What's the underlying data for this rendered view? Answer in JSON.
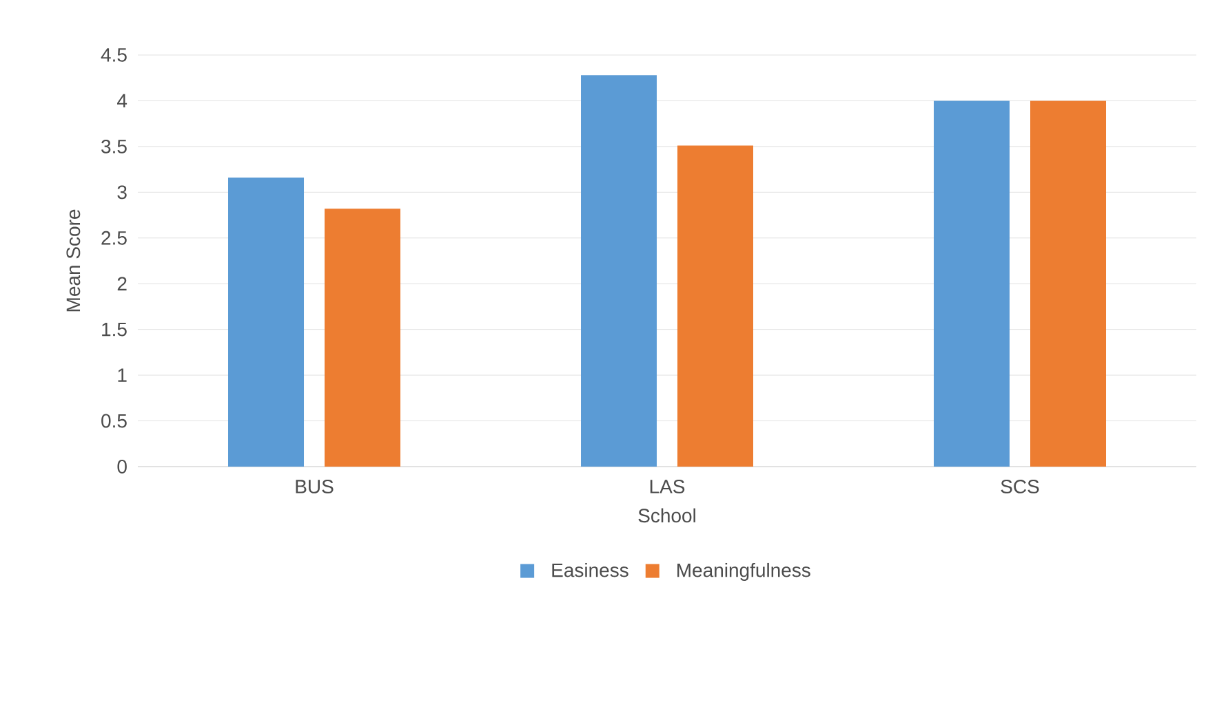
{
  "chart_data": {
    "type": "bar",
    "xlabel": "School",
    "ylabel": "Mean Score",
    "categories": [
      "BUS",
      "LAS",
      "SCS"
    ],
    "series": [
      {
        "name": "Easiness",
        "color": "#5b9bd5",
        "values": [
          3.16,
          4.28,
          4.0
        ]
      },
      {
        "name": "Meaningfulness",
        "color": "#ed7d31",
        "values": [
          2.82,
          3.51,
          4.0
        ]
      }
    ],
    "ylim": [
      0,
      4.5
    ],
    "yticks": [
      0,
      0.5,
      1,
      1.5,
      2,
      2.5,
      3,
      3.5,
      4,
      4.5
    ],
    "grid": "y",
    "legend": "bottom"
  }
}
